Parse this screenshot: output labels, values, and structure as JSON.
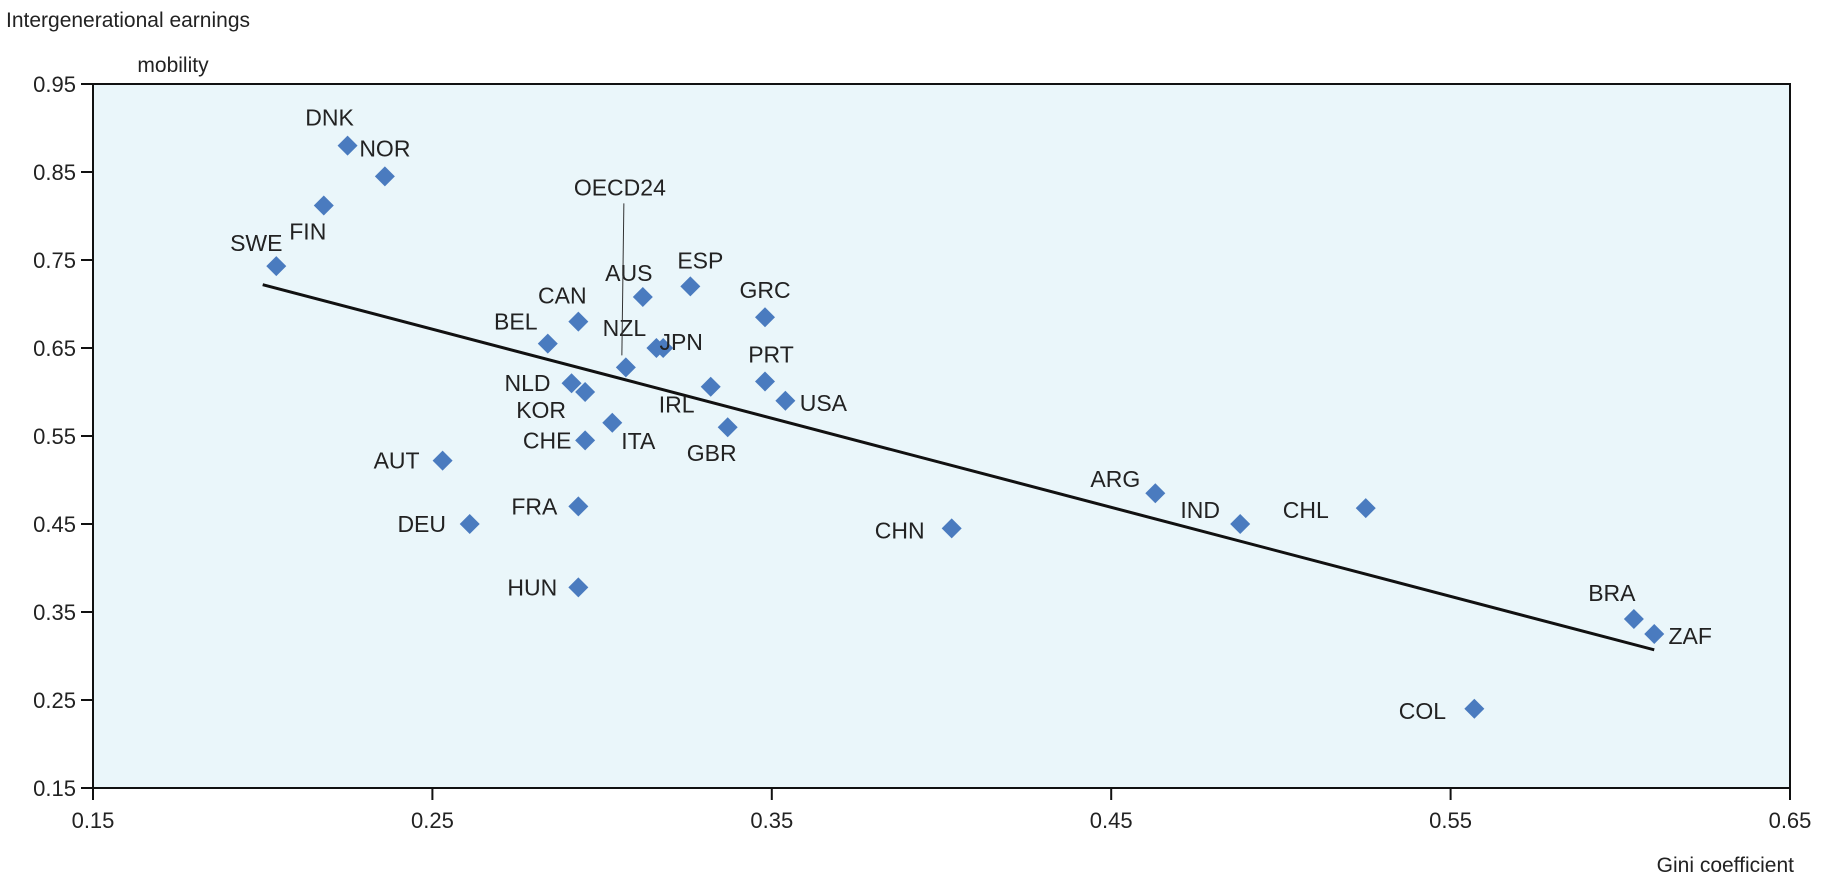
{
  "chart_data": {
    "type": "scatter",
    "title": "",
    "xlabel": "Gini coefficient",
    "ylabel": "Intergenerational earnings mobility",
    "ylabel_lines": [
      "Intergenerational earnings",
      "mobility"
    ],
    "xlim": [
      0.15,
      0.65
    ],
    "ylim": [
      0.15,
      0.95
    ],
    "x_ticks": [
      "0.15",
      "0.25",
      "0.35",
      "0.45",
      "0.55",
      "0.65"
    ],
    "y_ticks": [
      "0.15",
      "0.25",
      "0.35",
      "0.45",
      "0.55",
      "0.65",
      "0.75",
      "0.85",
      "0.95"
    ],
    "grid": false,
    "legend": "none",
    "colors": {
      "plot_background": "#eaf6fa",
      "marker": "#4a7bbf",
      "trend_line": "#111111"
    },
    "trend_line": {
      "x": [
        0.2,
        0.61
      ],
      "y": [
        0.722,
        0.307
      ]
    },
    "points": [
      {
        "label": "DNK",
        "x": 0.225,
        "y": 0.88
      },
      {
        "label": "NOR",
        "x": 0.236,
        "y": 0.845
      },
      {
        "label": "FIN",
        "x": 0.218,
        "y": 0.812
      },
      {
        "label": "SWE",
        "x": 0.204,
        "y": 0.743
      },
      {
        "label": "CAN",
        "x": 0.293,
        "y": 0.68
      },
      {
        "label": "AUS",
        "x": 0.312,
        "y": 0.708
      },
      {
        "label": "ESP",
        "x": 0.326,
        "y": 0.72
      },
      {
        "label": "GRC",
        "x": 0.348,
        "y": 0.685
      },
      {
        "label": "BEL",
        "x": 0.284,
        "y": 0.655
      },
      {
        "label": "NZL",
        "x": 0.316,
        "y": 0.65
      },
      {
        "label": "JPN",
        "x": 0.318,
        "y": 0.65
      },
      {
        "label": "OECD24",
        "x": 0.307,
        "y": 0.628
      },
      {
        "label": "PRT",
        "x": 0.348,
        "y": 0.612
      },
      {
        "label": "NLD",
        "x": 0.291,
        "y": 0.61
      },
      {
        "label": "KOR",
        "x": 0.295,
        "y": 0.6
      },
      {
        "label": "IRL",
        "x": 0.332,
        "y": 0.606
      },
      {
        "label": "USA",
        "x": 0.354,
        "y": 0.59
      },
      {
        "label": "ITA",
        "x": 0.303,
        "y": 0.565
      },
      {
        "label": "GBR",
        "x": 0.337,
        "y": 0.56
      },
      {
        "label": "CHE",
        "x": 0.295,
        "y": 0.545
      },
      {
        "label": "AUT",
        "x": 0.253,
        "y": 0.522
      },
      {
        "label": "FRA",
        "x": 0.293,
        "y": 0.47
      },
      {
        "label": "DEU",
        "x": 0.261,
        "y": 0.45
      },
      {
        "label": "HUN",
        "x": 0.293,
        "y": 0.378
      },
      {
        "label": "CHN",
        "x": 0.403,
        "y": 0.445
      },
      {
        "label": "ARG",
        "x": 0.463,
        "y": 0.485
      },
      {
        "label": "IND",
        "x": 0.488,
        "y": 0.45
      },
      {
        "label": "CHL",
        "x": 0.525,
        "y": 0.468
      },
      {
        "label": "COL",
        "x": 0.557,
        "y": 0.24
      },
      {
        "label": "BRA",
        "x": 0.604,
        "y": 0.342
      },
      {
        "label": "ZAF",
        "x": 0.61,
        "y": 0.325
      }
    ]
  }
}
